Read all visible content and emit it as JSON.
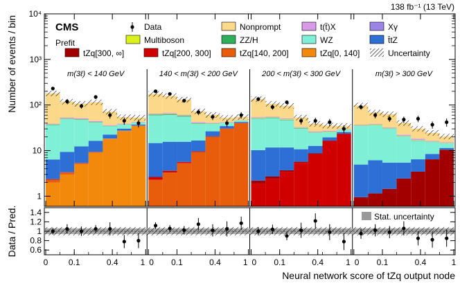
{
  "chart_data": {
    "type": "bar",
    "subtype": "stacked-histogram",
    "header_right": "138 fb⁻¹ (13 TeV)",
    "experiment": "CMS",
    "status": "Prefit",
    "ylabel": "Number of events / bin",
    "ylabel_ratio": "Data / Pred.",
    "xlabel": "Neural network score of tZq output node",
    "yscale": "log",
    "ylim": [
      0.6,
      10000
    ],
    "yticks": [
      "1",
      "10",
      "10²",
      "10³",
      "10⁴"
    ],
    "ratio_ylim": [
      0.5,
      1.5
    ],
    "ratio_yticks": [
      "0.6",
      "0.8",
      "1",
      "1.2",
      "1.4"
    ],
    "bin_edges": [
      0,
      0.05,
      0.1,
      0.2,
      0.3,
      0.45,
      0.6,
      1
    ],
    "xtick_labels": [
      "0",
      "0.1",
      "0.4",
      "1"
    ],
    "xtick_values": [
      0,
      0.1,
      0.4,
      1
    ],
    "categories": [
      "m(3ℓ) < 140 GeV",
      "140 < m(3ℓ) < 200 GeV",
      "200 < m(3ℓ) < 300 GeV",
      "m(3ℓ) > 300 GeV"
    ],
    "legend": [
      {
        "key": "data",
        "label": "Data"
      },
      {
        "key": "nonprompt",
        "label": "Nonprompt"
      },
      {
        "key": "ttx",
        "label": "t(t̄)X"
      },
      {
        "key": "xgamma",
        "label": "Xγ"
      },
      {
        "key": "multiboson",
        "label": "Multiboson"
      },
      {
        "key": "zzh",
        "label": "ZZ/H"
      },
      {
        "key": "wz",
        "label": "WZ"
      },
      {
        "key": "ttz",
        "label": "t̄tZ"
      },
      {
        "key": "tzq300",
        "label": "tZq[300, ∞]"
      },
      {
        "key": "tzq200",
        "label": "tZq[200, 300]"
      },
      {
        "key": "tzq140",
        "label": "tZq[140, 200]"
      },
      {
        "key": "tzq0",
        "label": "tZq[0, 140]"
      },
      {
        "key": "unc",
        "label": "Uncertainty"
      }
    ],
    "ratio_legend": "Stat. uncertainty",
    "colors": {
      "tzq0": "#f2890c",
      "tzq140": "#e85d0c",
      "tzq200": "#d10000",
      "tzq300": "#a20000",
      "ttz": "#2e6fd6",
      "wz": "#7ff0d6",
      "zzh": "#2fae5c",
      "multiboson": "#d9f21a",
      "ttx": "#d79ae6",
      "xgamma": "#9b86e8",
      "nonprompt": "#fcd88a"
    },
    "stack_order": [
      "tzq0",
      "tzq140",
      "tzq200",
      "tzq300",
      "ttz",
      "wz",
      "zzh",
      "multiboson",
      "ttx",
      "xgamma",
      "nonprompt"
    ],
    "series": [
      {
        "name": "tzq0",
        "values": [
          [
            2,
            3,
            5,
            9,
            18,
            27,
            35
          ],
          [
            0.3,
            0.3,
            0.3,
            0.3,
            0.2,
            0.2,
            0.2
          ],
          [
            0.1,
            0.1,
            0.1,
            0.1,
            0.1,
            0.1,
            0.1
          ],
          [
            0.05,
            0.05,
            0.05,
            0.05,
            0.05,
            0.05,
            0.05
          ]
        ]
      },
      {
        "name": "tzq140",
        "values": [
          [
            0.3,
            0.3,
            0.3,
            0.3,
            0.3,
            0.3,
            0.3
          ],
          [
            2,
            3,
            5,
            9,
            20,
            30,
            40
          ],
          [
            0.3,
            0.3,
            0.3,
            0.3,
            0.3,
            0.2,
            0.2
          ],
          [
            0.1,
            0.1,
            0.1,
            0.1,
            0.1,
            0.1,
            0.1
          ]
        ]
      },
      {
        "name": "tzq200",
        "values": [
          [
            0.05,
            0.05,
            0.05,
            0.05,
            0.05,
            0.05,
            0.05
          ],
          [
            0.3,
            0.3,
            0.3,
            0.3,
            0.3,
            0.3,
            0.3
          ],
          [
            1.5,
            2,
            3,
            5,
            8,
            16,
            23
          ],
          [
            0.3,
            0.3,
            0.3,
            0.3,
            0.3,
            0.3,
            0.3
          ]
        ]
      },
      {
        "name": "tzq300",
        "values": [
          [
            0.02,
            0.02,
            0.02,
            0.02,
            0.02,
            0.02,
            0.02
          ],
          [
            0.05,
            0.05,
            0.05,
            0.05,
            0.05,
            0.05,
            0.05
          ],
          [
            0.3,
            0.3,
            0.3,
            0.3,
            0.3,
            0.3,
            0.3
          ],
          [
            0.5,
            0.7,
            1,
            2,
            3,
            6,
            10
          ]
        ]
      },
      {
        "name": "ttz",
        "values": [
          [
            4,
            6,
            7,
            7,
            4,
            3,
            2
          ],
          [
            12,
            12,
            10,
            7,
            6,
            4,
            2
          ],
          [
            8,
            9,
            8,
            5,
            4,
            3,
            2
          ],
          [
            4,
            5,
            4,
            3,
            3,
            2,
            1
          ]
        ]
      },
      {
        "name": "wz",
        "values": [
          [
            30,
            40,
            35,
            25,
            12,
            7,
            4
          ],
          [
            45,
            45,
            40,
            22,
            12,
            6,
            3
          ],
          [
            40,
            40,
            35,
            20,
            12,
            6,
            3
          ],
          [
            30,
            30,
            25,
            15,
            10,
            7,
            3
          ]
        ]
      },
      {
        "name": "zzh",
        "values": [
          [
            1,
            1,
            1,
            0.8,
            0.5,
            0.3,
            0.2
          ],
          [
            2,
            2,
            2,
            1,
            0.5,
            0.3,
            0.2
          ],
          [
            1,
            1,
            1,
            0.6,
            0.4,
            0.3,
            0.2
          ],
          [
            0.5,
            0.5,
            0.5,
            0.3,
            0.3,
            0.2,
            0.1
          ]
        ]
      },
      {
        "name": "multiboson",
        "values": [
          [
            0.5,
            0.5,
            0.5,
            0.3,
            0.2,
            0.2,
            0.1
          ],
          [
            1,
            1,
            1,
            0.5,
            0.4,
            0.3,
            0.2
          ],
          [
            1,
            1,
            1,
            0.5,
            0.4,
            0.3,
            0.2
          ],
          [
            0.5,
            0.5,
            0.5,
            0.3,
            0.3,
            0.2,
            0.2
          ]
        ]
      },
      {
        "name": "ttx",
        "values": [
          [
            1,
            2,
            2,
            2,
            1,
            1,
            1
          ],
          [
            2,
            3,
            2,
            2,
            1,
            1,
            0.5
          ],
          [
            2,
            2,
            2,
            1,
            1,
            1,
            0.5
          ],
          [
            1,
            1,
            1,
            1,
            1,
            0.5,
            0.5
          ]
        ]
      },
      {
        "name": "xgamma",
        "values": [
          [
            0.5,
            0.5,
            0.5,
            0.3,
            0.2,
            0.2,
            0.1
          ],
          [
            0.5,
            0.5,
            0.5,
            0.3,
            0.2,
            0.2,
            0.1
          ],
          [
            0.3,
            0.3,
            0.3,
            0.2,
            0.2,
            0.1,
            0.1
          ],
          [
            0.2,
            0.2,
            0.2,
            0.2,
            0.1,
            0.1,
            0.1
          ]
        ]
      },
      {
        "name": "nonprompt",
        "values": [
          [
            140,
            65,
            55,
            70,
            35,
            15,
            10
          ],
          [
            110,
            90,
            70,
            30,
            20,
            10,
            8
          ],
          [
            80,
            50,
            45,
            20,
            12,
            8,
            5
          ],
          [
            60,
            30,
            30,
            18,
            12,
            8,
            5
          ]
        ]
      }
    ],
    "data_points": [
      [
        230,
        120,
        95,
        150,
        60,
        45,
        40
      ],
      [
        200,
        175,
        125,
        70,
        55,
        40,
        60
      ],
      [
        135,
        90,
        115,
        45,
        45,
        42,
        30
      ],
      [
        90,
        60,
        50,
        48,
        50,
        37,
        42
      ]
    ],
    "data_errors": [
      [
        0.08,
        0.12,
        0.12,
        0.1,
        0.16,
        0.18,
        0.2
      ],
      [
        0.08,
        0.08,
        0.1,
        0.14,
        0.15,
        0.18,
        0.16
      ],
      [
        0.1,
        0.12,
        0.1,
        0.17,
        0.17,
        0.18,
        0.2
      ],
      [
        0.12,
        0.15,
        0.15,
        0.16,
        0.16,
        0.18,
        0.2
      ]
    ],
    "ratio_values": [
      [
        1.0,
        1.05,
        1.0,
        1.05,
        1.05,
        0.78,
        0.8
      ],
      [
        1.12,
        1.06,
        1.02,
        1.15,
        1.02,
        1.05,
        1.17
      ],
      [
        1.0,
        1.04,
        0.9,
        1.02,
        1.22,
        0.98,
        0.78
      ],
      [
        0.95,
        1.02,
        0.98,
        1.06,
        0.85,
        0.82,
        0.85
      ]
    ],
    "ratio_errors": [
      [
        0.07,
        0.1,
        0.1,
        0.08,
        0.14,
        0.14,
        0.16
      ],
      [
        0.07,
        0.07,
        0.09,
        0.13,
        0.13,
        0.16,
        0.14
      ],
      [
        0.09,
        0.1,
        0.09,
        0.16,
        0.16,
        0.17,
        0.18
      ],
      [
        0.11,
        0.13,
        0.13,
        0.15,
        0.15,
        0.17,
        0.18
      ]
    ]
  }
}
